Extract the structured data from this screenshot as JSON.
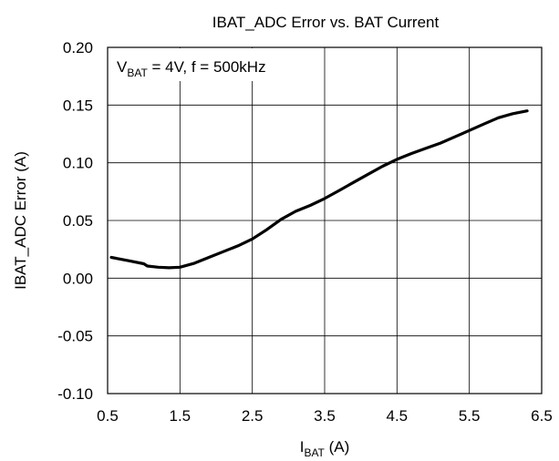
{
  "chart_data": {
    "type": "line",
    "title": "IBAT_ADC Error vs. BAT Current",
    "xlabel": {
      "main": "I",
      "sub": "BAT",
      "suffix": " (A)"
    },
    "ylabel": "IBAT_ADC Error (A)",
    "annotation": {
      "main": "V",
      "sub": "BAT",
      "suffix": " = 4V, f = 500kHz"
    },
    "xlim": [
      0.5,
      6.5
    ],
    "ylim": [
      -0.1,
      0.2
    ],
    "xticks": [
      0.5,
      1.5,
      2.5,
      3.5,
      4.5,
      5.5,
      6.5
    ],
    "xtick_labels": [
      "0.5",
      "1.5",
      "2.5",
      "3.5",
      "4.5",
      "5.5",
      "6.5"
    ],
    "yticks": [
      -0.1,
      -0.05,
      0.0,
      0.05,
      0.1,
      0.15,
      0.2
    ],
    "ytick_labels": [
      "-0.10",
      "-0.05",
      "0.00",
      "0.05",
      "0.10",
      "0.15",
      "0.20"
    ],
    "grid": true,
    "line_color": "#000000",
    "series": [
      {
        "x": [
          0.55,
          0.8,
          1.0,
          1.05,
          1.2,
          1.35,
          1.5,
          1.7,
          1.9,
          2.1,
          2.3,
          2.5,
          2.7,
          2.9,
          3.1,
          3.3,
          3.5,
          3.7,
          3.9,
          4.1,
          4.3,
          4.5,
          4.7,
          4.9,
          5.1,
          5.3,
          5.5,
          5.7,
          5.9,
          6.1,
          6.3
        ],
        "y": [
          0.018,
          0.015,
          0.0125,
          0.0105,
          0.0095,
          0.009,
          0.0095,
          0.013,
          0.018,
          0.023,
          0.028,
          0.034,
          0.042,
          0.051,
          0.058,
          0.063,
          0.069,
          0.076,
          0.083,
          0.09,
          0.097,
          0.103,
          0.108,
          0.1125,
          0.117,
          0.1225,
          0.128,
          0.1335,
          0.139,
          0.1425,
          0.145
        ]
      }
    ]
  }
}
